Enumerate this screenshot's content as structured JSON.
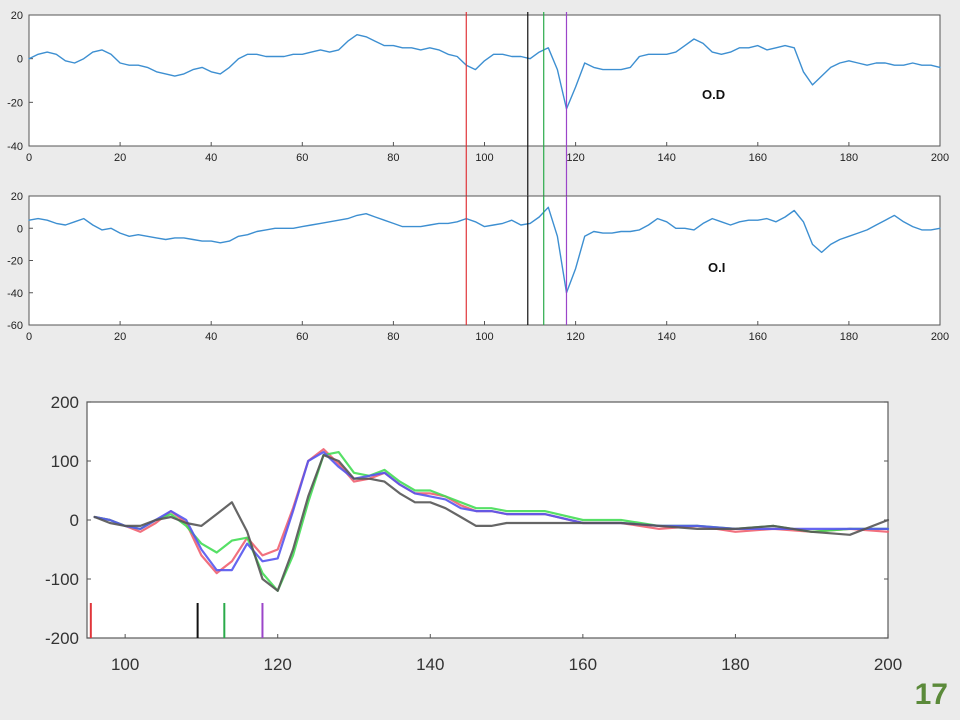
{
  "slide_number": "17",
  "colors": {
    "trace": "#3d8fd1",
    "red": "#e0353a",
    "black": "#111111",
    "green": "#2aaa4a",
    "purple": "#9b45c9",
    "bottom_red": "#f06070",
    "bottom_green": "#44dd55",
    "bottom_blue": "#5555ee",
    "bottom_gray": "#555555",
    "slide_number": "#5b8a3a"
  },
  "chart_data": [
    {
      "type": "line",
      "label": "O.D",
      "xlim": [
        0,
        200
      ],
      "ylim": [
        -40,
        20
      ],
      "xticks": [
        0,
        20,
        40,
        60,
        80,
        100,
        120,
        140,
        160,
        180,
        200
      ],
      "yticks": [
        -40,
        -20,
        0,
        20
      ],
      "markers": [
        {
          "x": 96,
          "color": "red"
        },
        {
          "x": 109.5,
          "color": "black"
        },
        {
          "x": 113,
          "color": "green"
        },
        {
          "x": 118,
          "color": "purple"
        }
      ],
      "series": [
        {
          "color": "trace",
          "x": [
            0,
            2,
            4,
            6,
            8,
            10,
            12,
            14,
            16,
            18,
            20,
            22,
            24,
            26,
            28,
            30,
            32,
            34,
            36,
            38,
            40,
            42,
            44,
            46,
            48,
            50,
            52,
            54,
            56,
            58,
            60,
            62,
            64,
            66,
            68,
            70,
            72,
            74,
            76,
            78,
            80,
            82,
            84,
            86,
            88,
            90,
            92,
            94,
            96,
            98,
            100,
            102,
            104,
            106,
            108,
            110,
            112,
            114,
            116,
            118,
            120,
            122,
            124,
            126,
            128,
            130,
            132,
            134,
            136,
            138,
            140,
            142,
            144,
            146,
            148,
            150,
            152,
            154,
            156,
            158,
            160,
            162,
            164,
            166,
            168,
            170,
            172,
            174,
            176,
            178,
            180,
            182,
            184,
            186,
            188,
            190,
            192,
            194,
            196,
            198,
            200
          ],
          "y": [
            0,
            2,
            3,
            2,
            -1,
            -2,
            0,
            3,
            4,
            2,
            -2,
            -3,
            -3,
            -4,
            -6,
            -7,
            -8,
            -7,
            -5,
            -4,
            -6,
            -7,
            -4,
            0,
            2,
            2,
            1,
            1,
            1,
            2,
            2,
            3,
            4,
            3,
            4,
            8,
            11,
            10,
            8,
            6,
            6,
            5,
            5,
            4,
            5,
            4,
            2,
            1,
            -3,
            -5,
            -1,
            2,
            2,
            1,
            1,
            0,
            3,
            5,
            -5,
            -23,
            -13,
            -2,
            -4,
            -5,
            -5,
            -5,
            -4,
            1,
            2,
            2,
            2,
            3,
            6,
            9,
            7,
            3,
            2,
            3,
            5,
            5,
            6,
            4,
            5,
            6,
            5,
            -6,
            -12,
            -8,
            -4,
            -2,
            -1,
            -2,
            -3,
            -2,
            -2,
            -3,
            -3,
            -2,
            -3,
            -3,
            -4
          ]
        }
      ]
    },
    {
      "type": "line",
      "label": "O.I",
      "xlim": [
        0,
        200
      ],
      "ylim": [
        -60,
        20
      ],
      "xticks": [
        0,
        20,
        40,
        60,
        80,
        100,
        120,
        140,
        160,
        180,
        200
      ],
      "yticks": [
        -60,
        -40,
        -20,
        0,
        20
      ],
      "markers": [
        {
          "x": 96,
          "color": "red"
        },
        {
          "x": 109.5,
          "color": "black"
        },
        {
          "x": 113,
          "color": "green"
        },
        {
          "x": 118,
          "color": "purple"
        }
      ],
      "series": [
        {
          "color": "trace",
          "x": [
            0,
            2,
            4,
            6,
            8,
            10,
            12,
            14,
            16,
            18,
            20,
            22,
            24,
            26,
            28,
            30,
            32,
            34,
            36,
            38,
            40,
            42,
            44,
            46,
            48,
            50,
            52,
            54,
            56,
            58,
            60,
            62,
            64,
            66,
            68,
            70,
            72,
            74,
            76,
            78,
            80,
            82,
            84,
            86,
            88,
            90,
            92,
            94,
            96,
            98,
            100,
            102,
            104,
            106,
            108,
            110,
            112,
            114,
            116,
            118,
            120,
            122,
            124,
            126,
            128,
            130,
            132,
            134,
            136,
            138,
            140,
            142,
            144,
            146,
            148,
            150,
            152,
            154,
            156,
            158,
            160,
            162,
            164,
            166,
            168,
            170,
            172,
            174,
            176,
            178,
            180,
            182,
            184,
            186,
            188,
            190,
            192,
            194,
            196,
            198,
            200
          ],
          "y": [
            5,
            6,
            5,
            3,
            2,
            4,
            6,
            2,
            -1,
            0,
            -3,
            -5,
            -4,
            -5,
            -6,
            -7,
            -6,
            -6,
            -7,
            -8,
            -8,
            -9,
            -8,
            -5,
            -4,
            -2,
            -1,
            0,
            0,
            0,
            1,
            2,
            3,
            4,
            5,
            6,
            8,
            9,
            7,
            5,
            3,
            1,
            1,
            1,
            2,
            3,
            3,
            4,
            6,
            4,
            1,
            2,
            3,
            5,
            2,
            3,
            7,
            13,
            -5,
            -40,
            -25,
            -5,
            -2,
            -3,
            -3,
            -2,
            -2,
            -1,
            2,
            6,
            4,
            0,
            0,
            -1,
            3,
            6,
            4,
            2,
            4,
            5,
            5,
            6,
            4,
            7,
            11,
            4,
            -10,
            -15,
            -10,
            -7,
            -5,
            -3,
            -1,
            2,
            5,
            8,
            4,
            1,
            -1,
            -1,
            0
          ]
        }
      ]
    },
    {
      "type": "line",
      "xlim": [
        95,
        200
      ],
      "ylim": [
        -200,
        200
      ],
      "xticks": [
        100,
        120,
        140,
        160,
        180,
        200
      ],
      "yticks": [
        -200,
        -100,
        0,
        100,
        200
      ],
      "markers": [
        {
          "x": 95.5,
          "color": "red"
        },
        {
          "x": 109.5,
          "color": "black"
        },
        {
          "x": 113,
          "color": "green"
        },
        {
          "x": 118,
          "color": "purple"
        }
      ],
      "series": [
        {
          "color": "bottom_red",
          "x": [
            96,
            98,
            100,
            102,
            104,
            106,
            108,
            110,
            112,
            114,
            116,
            118,
            120,
            122,
            124,
            126,
            128,
            130,
            132,
            134,
            136,
            138,
            140,
            142,
            144,
            146,
            148,
            150,
            155,
            160,
            165,
            170,
            175,
            180,
            185,
            190,
            195,
            200
          ],
          "y": [
            5,
            0,
            -10,
            -20,
            -5,
            15,
            -5,
            -60,
            -90,
            -70,
            -30,
            -60,
            -50,
            20,
            100,
            120,
            95,
            65,
            70,
            80,
            60,
            45,
            45,
            40,
            25,
            15,
            15,
            10,
            10,
            -5,
            -5,
            -15,
            -10,
            -20,
            -15,
            -20,
            -15,
            -20
          ]
        },
        {
          "color": "bottom_green",
          "x": [
            96,
            98,
            100,
            102,
            104,
            106,
            108,
            110,
            112,
            114,
            116,
            118,
            120,
            122,
            124,
            126,
            128,
            130,
            132,
            134,
            136,
            138,
            140,
            142,
            144,
            146,
            148,
            150,
            155,
            160,
            165,
            170,
            175,
            180,
            185,
            190,
            195,
            200
          ],
          "y": [
            5,
            0,
            -10,
            -15,
            0,
            10,
            -10,
            -40,
            -55,
            -35,
            -30,
            -90,
            -120,
            -60,
            30,
            110,
            115,
            80,
            75,
            85,
            65,
            50,
            50,
            40,
            30,
            20,
            20,
            15,
            15,
            0,
            0,
            -10,
            -10,
            -15,
            -10,
            -20,
            -15,
            -15
          ]
        },
        {
          "color": "bottom_blue",
          "x": [
            96,
            98,
            100,
            102,
            104,
            106,
            108,
            110,
            112,
            114,
            116,
            118,
            120,
            122,
            124,
            126,
            128,
            130,
            132,
            134,
            136,
            138,
            140,
            142,
            144,
            146,
            148,
            150,
            155,
            160,
            165,
            170,
            175,
            180,
            185,
            190,
            195,
            200
          ],
          "y": [
            5,
            0,
            -10,
            -15,
            0,
            15,
            0,
            -50,
            -85,
            -85,
            -40,
            -70,
            -65,
            15,
            100,
            115,
            90,
            70,
            75,
            80,
            60,
            45,
            40,
            35,
            20,
            15,
            15,
            10,
            10,
            -5,
            -5,
            -10,
            -10,
            -15,
            -15,
            -15,
            -15,
            -15
          ]
        },
        {
          "color": "bottom_gray",
          "x": [
            96,
            98,
            100,
            102,
            104,
            106,
            108,
            110,
            112,
            114,
            116,
            118,
            120,
            122,
            124,
            126,
            128,
            130,
            132,
            134,
            136,
            138,
            140,
            142,
            144,
            146,
            148,
            150,
            155,
            160,
            165,
            170,
            175,
            180,
            185,
            190,
            195,
            200
          ],
          "y": [
            5,
            -5,
            -10,
            -10,
            0,
            5,
            -5,
            -10,
            10,
            30,
            -20,
            -100,
            -120,
            -50,
            40,
            110,
            100,
            70,
            70,
            65,
            45,
            30,
            30,
            20,
            5,
            -10,
            -10,
            -5,
            -5,
            -5,
            -5,
            -10,
            -15,
            -15,
            -10,
            -20,
            -25,
            0
          ]
        }
      ]
    }
  ]
}
